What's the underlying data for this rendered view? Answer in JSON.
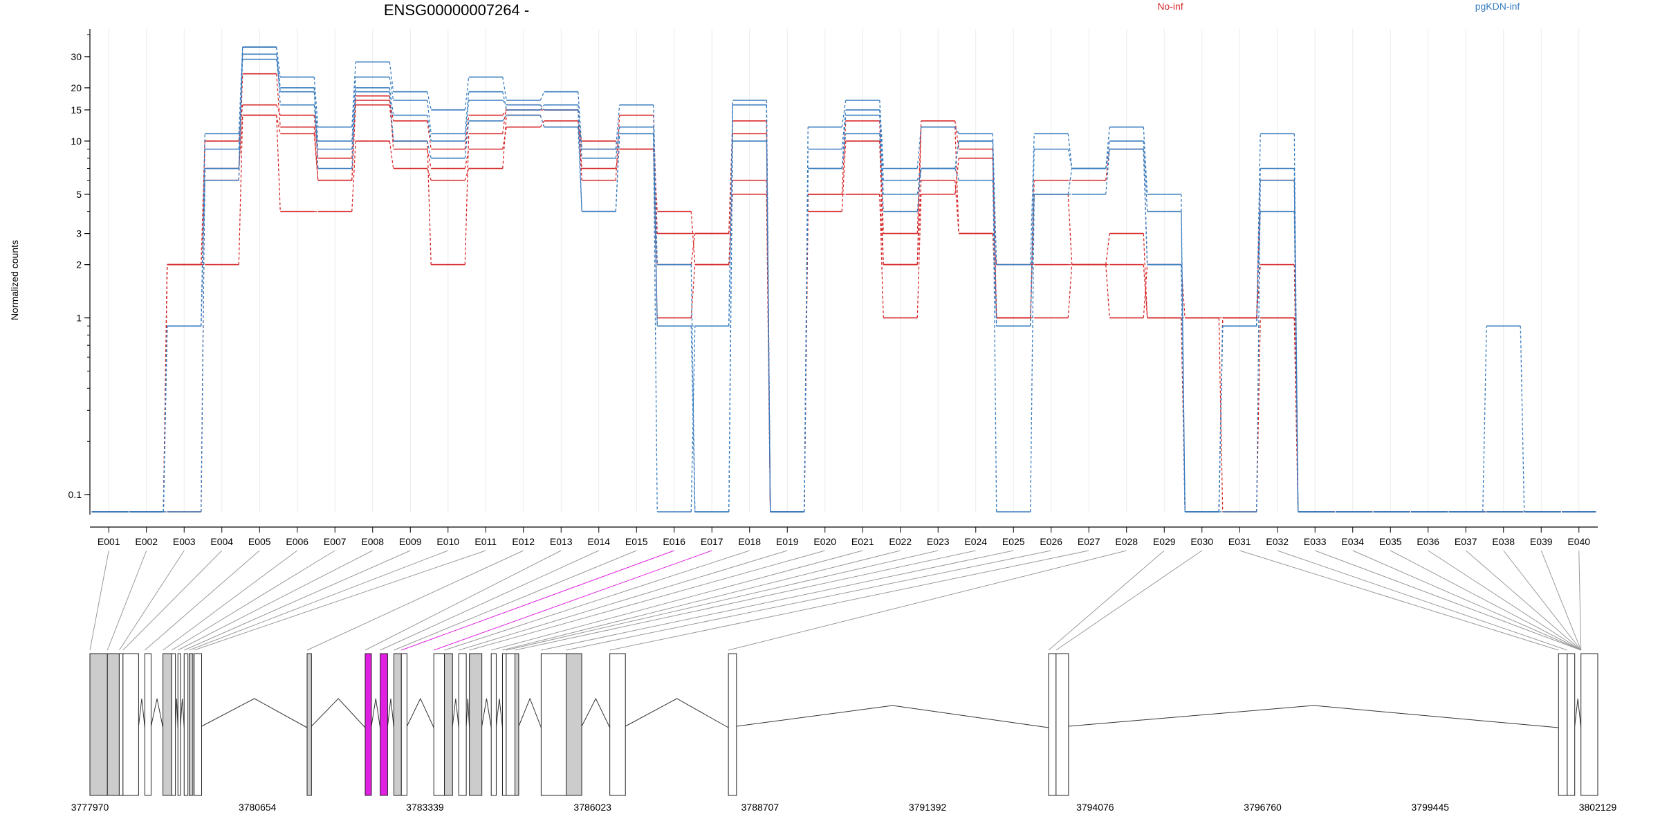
{
  "chart_data": {
    "type": "line",
    "title": "ENSG00000007264 -",
    "ylabel": "Normalized counts",
    "xlabel": "",
    "y_scale": "log",
    "y_ticks": [
      0.1,
      1,
      2,
      3,
      5,
      10,
      15,
      20,
      30
    ],
    "y_tick_labels": [
      "0.1",
      "1",
      "2",
      "3",
      "5",
      "10",
      "15",
      "20",
      "30"
    ],
    "ylim": [
      0.08,
      40
    ],
    "grid": "vertical",
    "legend_placement": "top",
    "colors": {
      "No-inf": "#d62728",
      "pgKDN-inf": "#3a7dbf",
      "highlight": "#e020e0",
      "exon_fill": "#cccccc"
    },
    "categories": [
      "E001",
      "E002",
      "E003",
      "E004",
      "E005",
      "E006",
      "E007",
      "E008",
      "E009",
      "E010",
      "E011",
      "E012",
      "E013",
      "E014",
      "E015",
      "E016",
      "E017",
      "E018",
      "E019",
      "E020",
      "E021",
      "E022",
      "E023",
      "E024",
      "E025",
      "E026",
      "E027",
      "E028",
      "E029",
      "E030",
      "E031",
      "E032",
      "E033",
      "E034",
      "E035",
      "E036",
      "E037",
      "E038",
      "E039",
      "E040"
    ],
    "highlighted_categories": [
      "E016",
      "E017"
    ],
    "series": [
      {
        "name": "No-inf",
        "values": [
          0.08,
          0.08,
          2,
          6,
          24,
          12,
          6,
          17,
          13,
          9,
          14,
          15,
          15,
          6,
          14,
          3,
          3,
          13,
          0.08,
          5,
          13,
          3,
          13,
          9,
          1,
          6,
          6,
          9,
          2,
          1,
          1,
          6,
          0.08,
          0.08,
          0.08,
          0.08,
          0.08,
          0.08,
          0.08,
          0.08
        ]
      },
      {
        "name": "No-inf",
        "values": [
          0.08,
          0.08,
          2,
          10,
          16,
          14,
          8,
          18,
          9,
          7,
          9,
          12,
          13,
          7,
          9,
          1,
          2,
          6,
          0.08,
          4,
          10,
          2,
          12,
          3,
          1,
          5,
          2,
          2,
          1,
          0.08,
          1,
          2,
          0.08,
          0.08,
          0.08,
          0.08,
          0.08,
          0.08,
          0.08,
          0.08
        ]
      },
      {
        "name": "No-inf",
        "values": [
          0.08,
          0.08,
          2,
          2,
          14,
          4,
          4,
          10,
          7,
          6,
          7,
          14,
          12,
          10,
          9,
          4,
          2,
          5,
          0.08,
          5,
          5,
          2,
          6,
          3,
          2,
          2,
          2,
          3,
          1,
          1,
          0.08,
          1,
          0.08,
          0.08,
          0.08,
          0.08,
          0.08,
          0.08,
          0.08,
          0.08
        ]
      },
      {
        "name": "No-inf",
        "values": [
          0.08,
          0.08,
          0.08,
          7,
          14,
          11,
          6,
          16,
          10,
          2,
          11,
          16,
          15,
          9,
          9,
          2,
          3,
          11,
          0.08,
          5,
          5,
          1,
          5,
          8,
          1,
          1,
          2,
          1,
          2,
          0.08,
          1,
          1,
          0.08,
          0.08,
          0.08,
          0.08,
          0.08,
          0.08,
          0.08,
          0.08
        ]
      },
      {
        "name": "pgKDN-inf",
        "values": [
          0.08,
          0.08,
          0.9,
          11,
          34,
          23,
          12,
          28,
          19,
          15,
          23,
          17,
          19,
          9,
          16,
          2,
          0.08,
          17,
          0.08,
          12,
          17,
          7,
          12,
          11,
          2,
          11,
          7,
          12,
          5,
          0.08,
          0.9,
          11,
          0.08,
          0.08,
          0.08,
          0.08,
          0.08,
          0.9,
          0.08,
          0.08
        ]
      },
      {
        "name": "pgKDN-inf",
        "values": [
          0.08,
          0.08,
          0.9,
          9,
          29,
          19,
          10,
          23,
          17,
          11,
          19,
          15,
          16,
          8,
          12,
          0.9,
          0.9,
          16,
          0.08,
          9,
          15,
          6,
          7,
          10,
          0.9,
          9,
          7,
          10,
          4,
          0.08,
          0.9,
          7,
          0.08,
          0.08,
          0.08,
          0.08,
          0.08,
          0.08,
          0.08,
          0.08
        ]
      },
      {
        "name": "pgKDN-inf",
        "values": [
          0.08,
          0.08,
          0.9,
          6,
          34,
          16,
          9,
          20,
          14,
          10,
          17,
          16,
          15,
          4,
          11,
          0.9,
          0.08,
          10,
          0.08,
          7,
          14,
          5,
          7,
          6,
          0.9,
          5,
          5,
          9,
          2,
          0.08,
          0.9,
          4,
          0.08,
          0.08,
          0.08,
          0.08,
          0.08,
          0.08,
          0.08,
          0.08
        ]
      },
      {
        "name": "pgKDN-inf",
        "values": [
          0.08,
          0.08,
          0.08,
          7,
          31,
          20,
          7,
          19,
          10,
          8,
          13,
          14,
          12,
          4,
          11,
          0.08,
          0.9,
          16,
          0.08,
          7,
          11,
          4,
          7,
          10,
          0.08,
          5,
          7,
          9,
          2,
          0.08,
          0.08,
          6,
          0.08,
          0.08,
          0.08,
          0.08,
          0.08,
          0.08,
          0.08,
          0.08
        ]
      }
    ],
    "legend": [
      "No-inf",
      "pgKDN-inf"
    ],
    "gene_coordinates": [
      "3777970",
      "3780654",
      "3783339",
      "3786023",
      "3788707",
      "3791392",
      "3794076",
      "3796760",
      "3799445",
      "3802129"
    ]
  }
}
